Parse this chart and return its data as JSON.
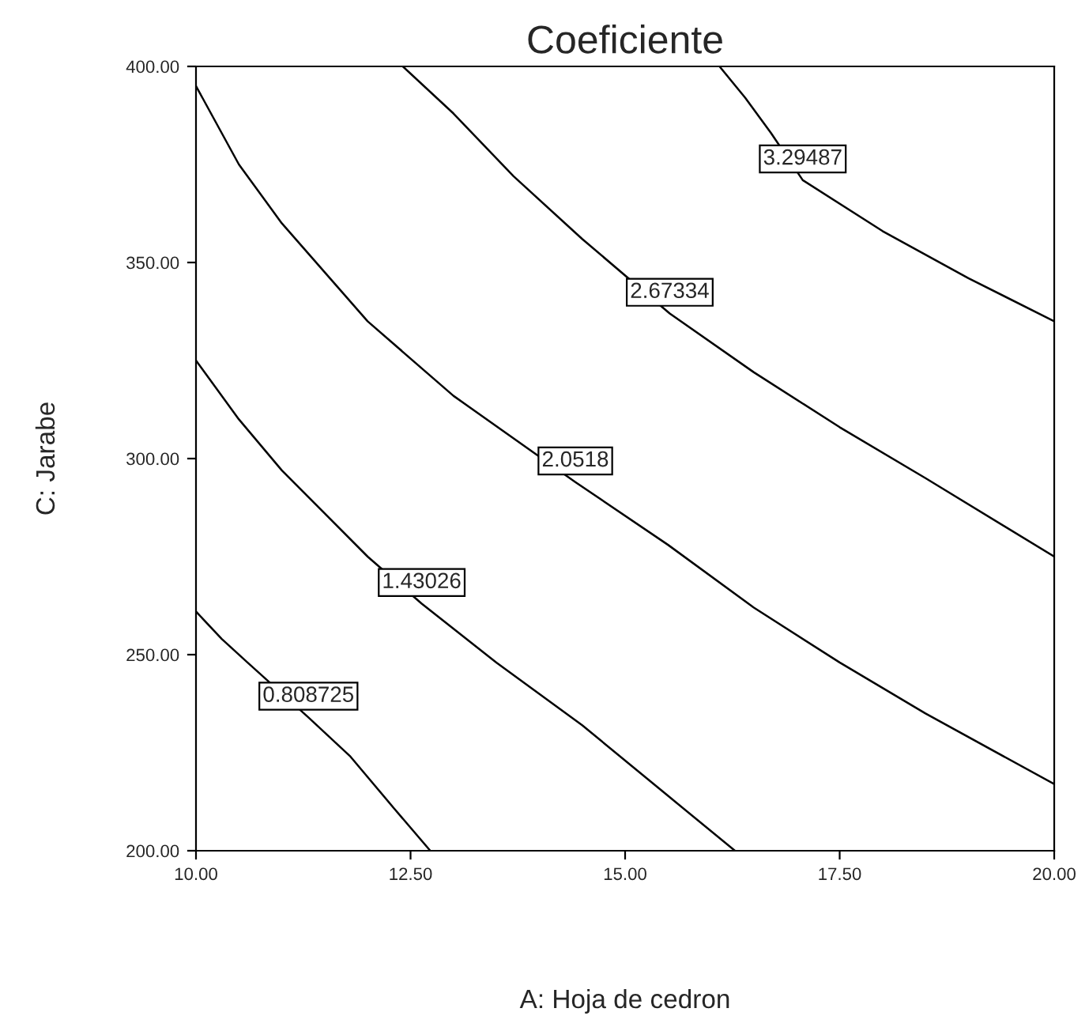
{
  "chart_data": {
    "type": "line",
    "title": "Coeficiente",
    "xlabel": "A: Hoja de cedron",
    "ylabel": "C: Jarabe",
    "xlim": [
      10,
      20
    ],
    "ylim": [
      200,
      400
    ],
    "xticks": [
      {
        "value": 10,
        "label": "10.00"
      },
      {
        "value": 12.5,
        "label": "12.50"
      },
      {
        "value": 15,
        "label": "15.00"
      },
      {
        "value": 17.5,
        "label": "17.50"
      },
      {
        "value": 20,
        "label": "20.00"
      }
    ],
    "yticks": [
      {
        "value": 200,
        "label": "200.00"
      },
      {
        "value": 250,
        "label": "250.00"
      },
      {
        "value": 300,
        "label": "300.00"
      },
      {
        "value": 350,
        "label": "350.00"
      },
      {
        "value": 400,
        "label": "400.00"
      }
    ],
    "grid": false,
    "legend": false,
    "marker": "none",
    "line_style": "solid",
    "series": [
      {
        "name": "0.808725",
        "color": "#000000",
        "x": [
          10,
          10.3,
          10.6,
          11.31,
          11.8,
          12.3,
          12.73
        ],
        "values": [
          261,
          254,
          248,
          234,
          224,
          211,
          200
        ]
      },
      {
        "name": "1.43026",
        "color": "#000000",
        "x": [
          10,
          10.5,
          11,
          11.5,
          12,
          12.63,
          13.5,
          14.5,
          15.5,
          16.28
        ],
        "values": [
          325,
          310,
          297,
          286,
          275,
          263,
          248,
          232,
          214,
          200
        ]
      },
      {
        "name": "2.0518",
        "color": "#000000",
        "x": [
          10,
          10.5,
          11,
          12,
          13,
          14.42,
          15.5,
          16.5,
          17.5,
          18.5,
          20
        ],
        "values": [
          395,
          375,
          360,
          335,
          316,
          294,
          278,
          262,
          248,
          235,
          217
        ]
      },
      {
        "name": "2.67334",
        "color": "#000000",
        "x": [
          12.41,
          13,
          13.7,
          14.5,
          15.52,
          16.5,
          17.5,
          18.5,
          20
        ],
        "values": [
          400,
          388,
          372,
          356,
          337,
          322,
          308,
          295,
          275
        ]
      },
      {
        "name": "3.29487",
        "color": "#000000",
        "x": [
          16.1,
          16.4,
          16.7,
          17.07,
          18,
          19,
          20
        ],
        "values": [
          400,
          392,
          383,
          371,
          358,
          346,
          335
        ]
      }
    ]
  }
}
